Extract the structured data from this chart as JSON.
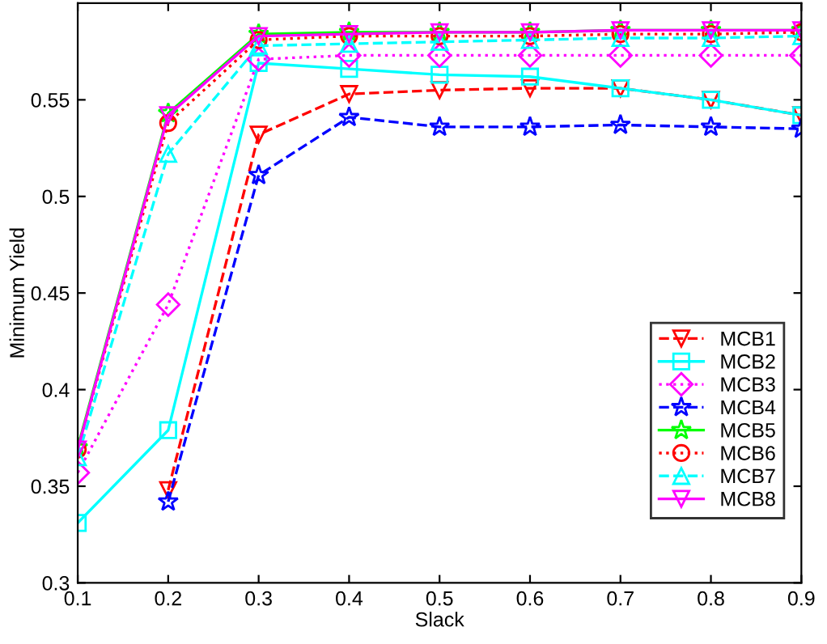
{
  "chart_data": {
    "type": "line",
    "xlabel": "Slack",
    "ylabel": "Minimum Yield",
    "x": [
      0.1,
      0.2,
      0.3,
      0.4,
      0.5,
      0.6,
      0.7,
      0.8,
      0.9
    ],
    "xlim": [
      0.1,
      0.9
    ],
    "xticks": [
      0.1,
      0.2,
      0.3,
      0.4,
      0.5,
      0.6,
      0.7,
      0.8,
      0.9
    ],
    "ylim": [
      0.3,
      0.6
    ],
    "yticks": [
      0.3,
      0.35,
      0.4,
      0.45,
      0.5,
      0.55
    ],
    "grid": false,
    "legend": "right",
    "series": [
      {
        "name": "MCB1",
        "color": "#ff0000",
        "marker": "triangle_down",
        "line_style": "dashed",
        "values": [
          null,
          0.348,
          0.532,
          0.553,
          0.555,
          0.556,
          0.556,
          0.55,
          0.542
        ]
      },
      {
        "name": "MCB2",
        "color": "#00ffff",
        "marker": "square",
        "line_style": "solid",
        "values": [
          0.331,
          0.379,
          0.569,
          0.566,
          0.563,
          0.562,
          0.556,
          0.55,
          0.542
        ]
      },
      {
        "name": "MCB3",
        "color": "#ff00ff",
        "marker": "diamond",
        "line_style": "dotted",
        "values": [
          0.357,
          0.444,
          0.571,
          0.573,
          0.573,
          0.573,
          0.573,
          0.573,
          0.573
        ]
      },
      {
        "name": "MCB4",
        "color": "#0000ff",
        "marker": "star",
        "line_style": "dashed",
        "values": [
          null,
          0.342,
          0.511,
          0.541,
          0.536,
          0.536,
          0.537,
          0.536,
          0.535
        ]
      },
      {
        "name": "MCB5",
        "color": "#00ff00",
        "marker": "star",
        "line_style": "solid",
        "values": [
          0.37,
          0.543,
          0.584,
          0.585,
          0.585,
          0.585,
          0.586,
          0.586,
          0.586
        ]
      },
      {
        "name": "MCB6",
        "color": "#ff0000",
        "marker": "circle",
        "line_style": "dotted",
        "values": [
          0.369,
          0.538,
          0.581,
          0.583,
          0.583,
          0.583,
          0.584,
          0.584,
          0.585
        ]
      },
      {
        "name": "MCB7",
        "color": "#00ffff",
        "marker": "triangle",
        "line_style": "dashed",
        "values": [
          0.365,
          0.522,
          0.578,
          0.579,
          0.58,
          0.581,
          0.582,
          0.582,
          0.583
        ]
      },
      {
        "name": "MCB8",
        "color": "#ff00ff",
        "marker": "triangle_down",
        "line_style": "solid",
        "values": [
          0.369,
          0.542,
          0.583,
          0.584,
          0.585,
          0.585,
          0.586,
          0.586,
          0.586
        ]
      }
    ]
  }
}
